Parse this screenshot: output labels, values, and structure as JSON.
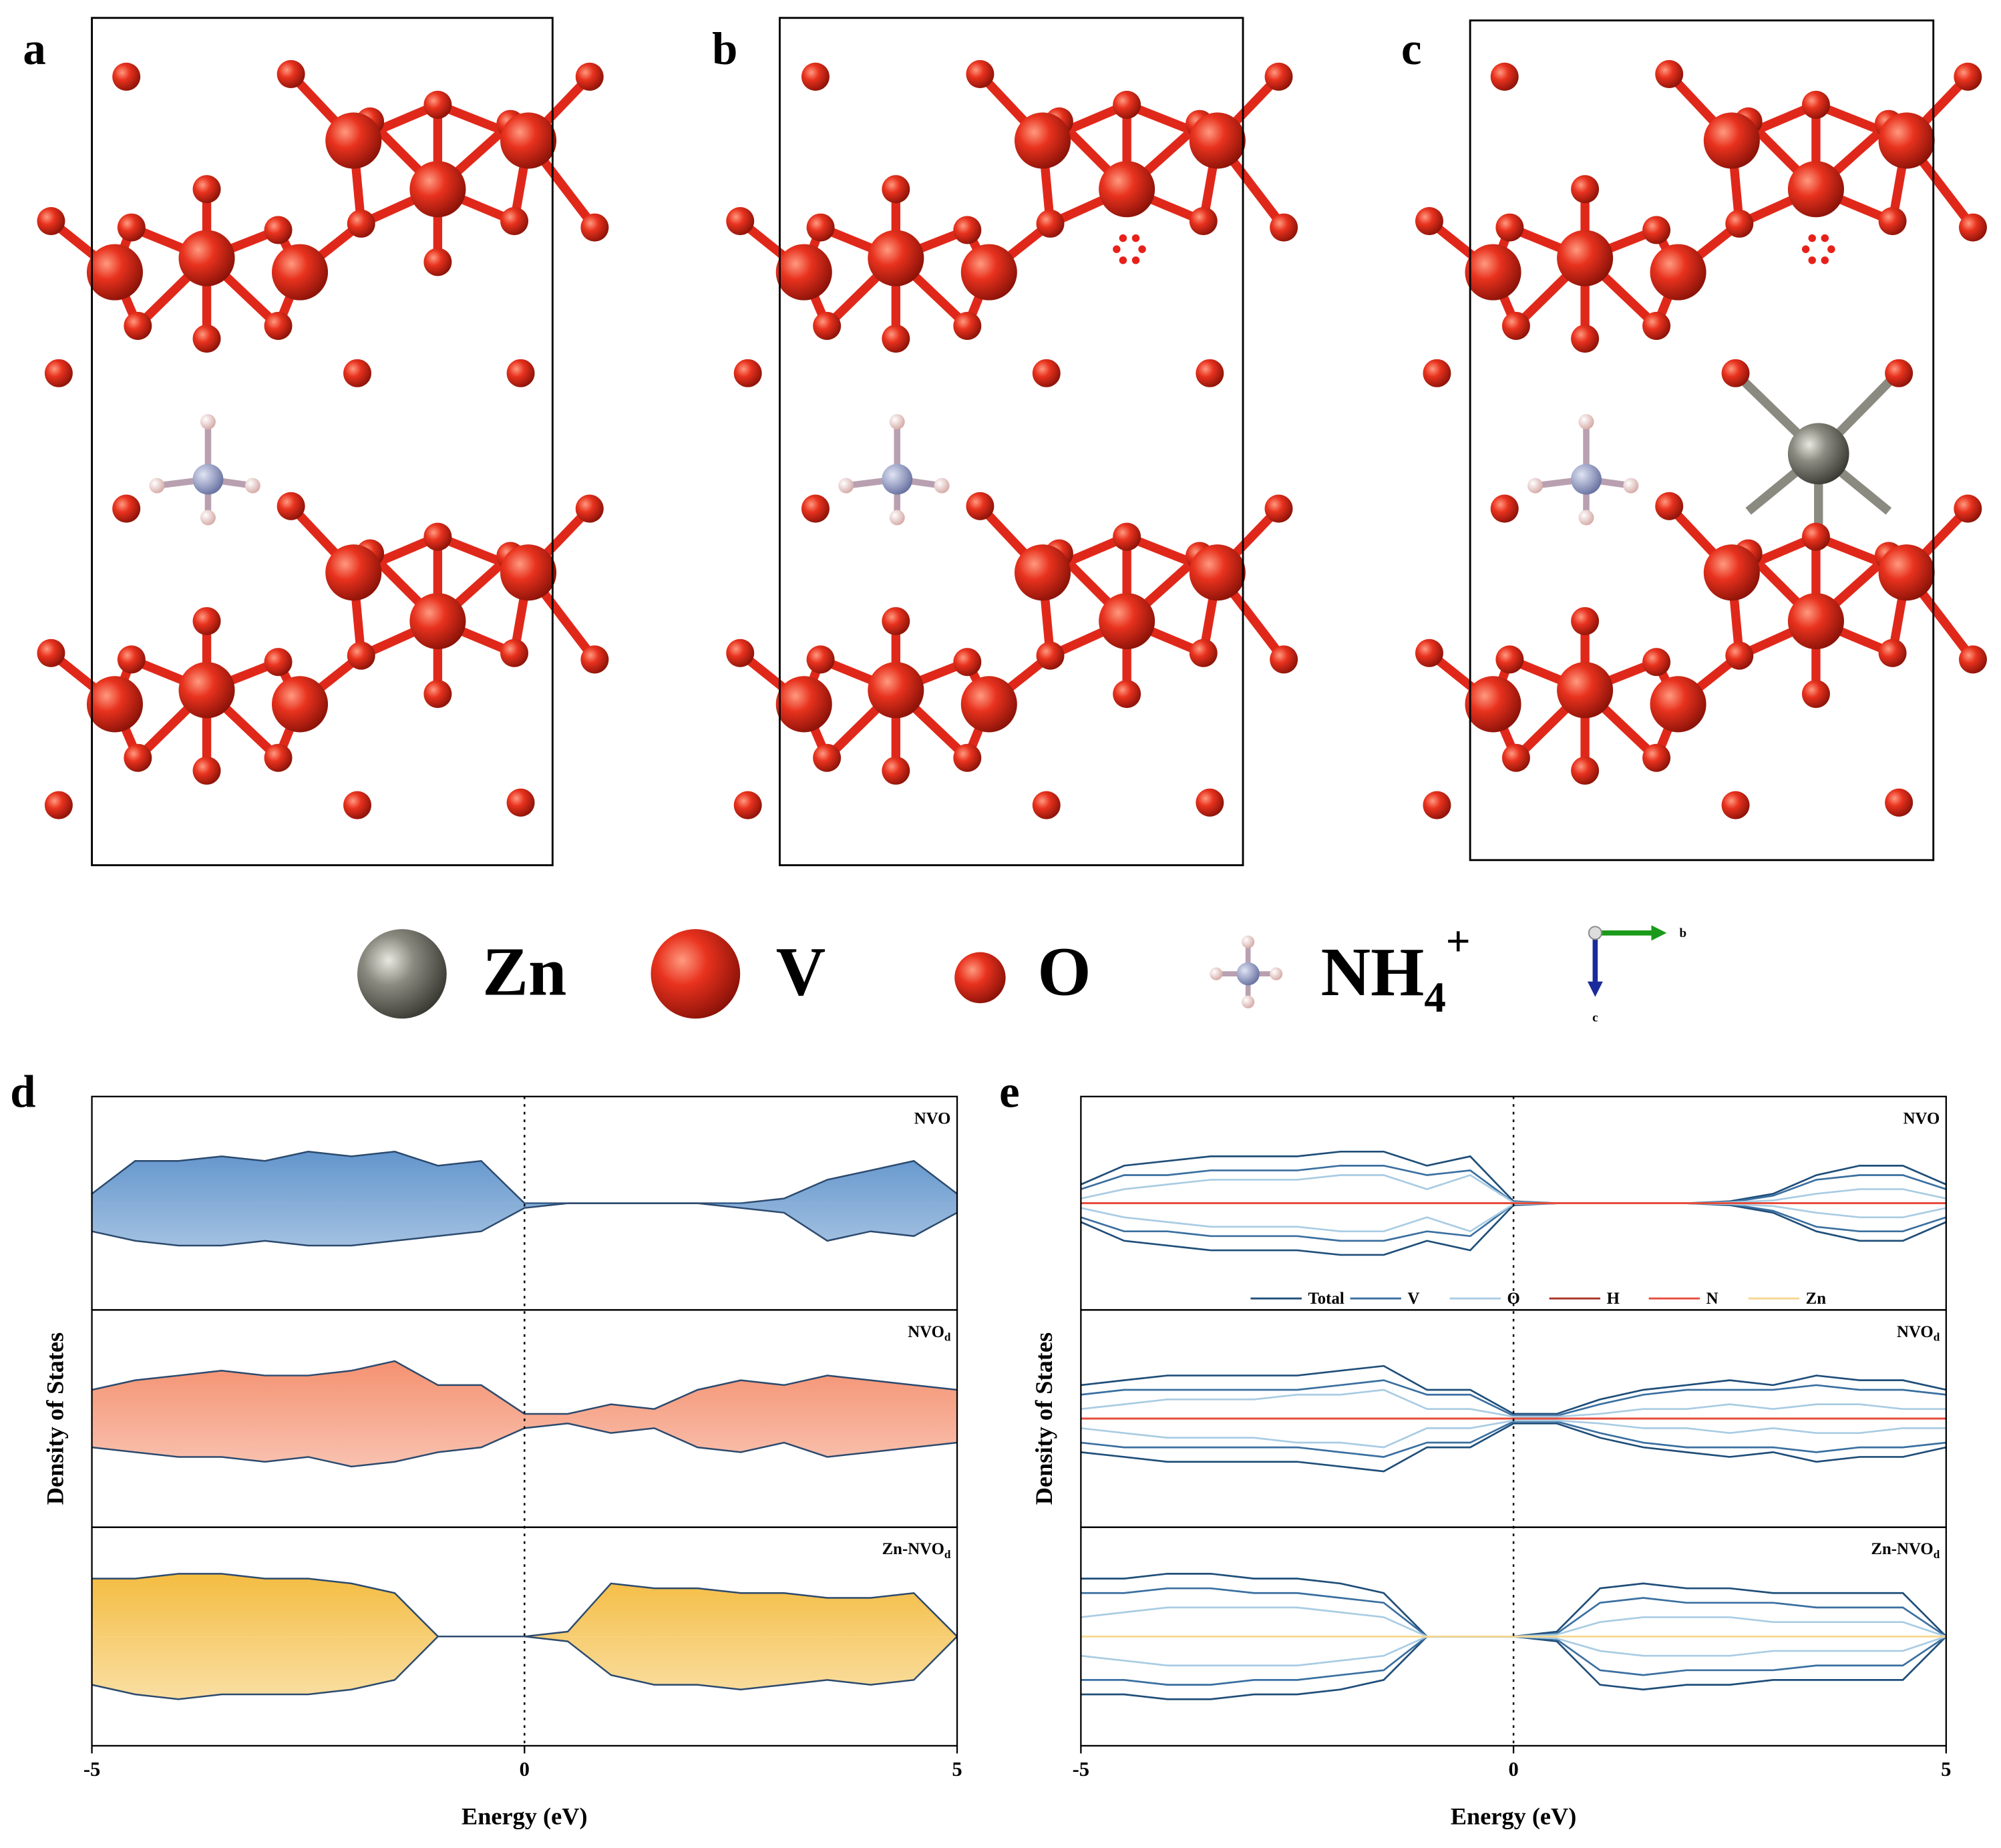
{
  "structures": {
    "panels": [
      {
        "label": "a"
      },
      {
        "label": "b"
      },
      {
        "label": "c"
      }
    ],
    "legend": [
      {
        "label": "Zn"
      },
      {
        "label": "V"
      },
      {
        "label": "O"
      },
      {
        "label": "NH",
        "sub": "4",
        "sup": "+"
      }
    ],
    "axes": {
      "x": "b",
      "y": "c"
    }
  },
  "chart_data": [
    {
      "type": "area",
      "panel_label": "d",
      "xlabel": "Energy (eV)",
      "ylabel": "Density of States",
      "x": [
        -5,
        -4.5,
        -4,
        -3.5,
        -3,
        -2.5,
        -2,
        -1.5,
        -1,
        -0.5,
        0,
        0.5,
        1,
        1.5,
        2,
        2.5,
        3,
        3.5,
        4,
        4.5,
        5
      ],
      "xlim": [
        -5,
        5
      ],
      "xticks": [
        -5,
        0,
        5
      ],
      "ylim": [
        -1,
        1
      ],
      "vline": 0,
      "panels": [
        {
          "title": "NVO",
          "color": "#3d7cc0",
          "up": [
            0.1,
            0.45,
            0.45,
            0.5,
            0.45,
            0.55,
            0.5,
            0.55,
            0.4,
            0.45,
            0,
            0,
            0,
            0,
            0,
            0,
            0.05,
            0.25,
            0.35,
            0.45,
            0.1
          ],
          "down": [
            -0.3,
            -0.4,
            -0.45,
            -0.45,
            -0.4,
            -0.45,
            -0.45,
            -0.4,
            -0.35,
            -0.3,
            -0.05,
            0,
            0,
            0,
            0,
            -0.05,
            -0.1,
            -0.4,
            -0.3,
            -0.35,
            -0.1
          ]
        },
        {
          "title": "NVO",
          "sub": "d",
          "color": "#f27a52",
          "up": [
            0.3,
            0.4,
            0.45,
            0.5,
            0.45,
            0.45,
            0.5,
            0.6,
            0.35,
            0.35,
            0.05,
            0.05,
            0.15,
            0.1,
            0.3,
            0.4,
            0.35,
            0.45,
            0.4,
            0.35,
            0.3
          ],
          "down": [
            -0.3,
            -0.35,
            -0.4,
            -0.4,
            -0.45,
            -0.4,
            -0.5,
            -0.45,
            -0.35,
            -0.3,
            -0.1,
            -0.05,
            -0.15,
            -0.1,
            -0.3,
            -0.35,
            -0.25,
            -0.4,
            -0.35,
            -0.3,
            -0.25
          ]
        },
        {
          "title": "Zn-NVO",
          "sub": "d",
          "color": "#f2b01e",
          "up": [
            0.6,
            0.6,
            0.65,
            0.65,
            0.6,
            0.6,
            0.55,
            0.45,
            0,
            0,
            0,
            0.05,
            0.55,
            0.5,
            0.5,
            0.45,
            0.45,
            0.4,
            0.4,
            0.45,
            0
          ],
          "down": [
            -0.5,
            -0.6,
            -0.65,
            -0.6,
            -0.6,
            -0.6,
            -0.55,
            -0.45,
            0,
            0,
            0,
            -0.05,
            -0.4,
            -0.5,
            -0.5,
            -0.55,
            -0.5,
            -0.45,
            -0.5,
            -0.45,
            0
          ]
        }
      ]
    },
    {
      "type": "line",
      "panel_label": "e",
      "xlabel": "Energy (eV)",
      "ylabel": "Density of States",
      "x": [
        -5,
        -4.5,
        -4,
        -3.5,
        -3,
        -2.5,
        -2,
        -1.5,
        -1,
        -0.5,
        0,
        0.5,
        1,
        1.5,
        2,
        2.5,
        3,
        3.5,
        4,
        4.5,
        5
      ],
      "xlim": [
        -5,
        5
      ],
      "xticks": [
        -5,
        0,
        5
      ],
      "ylim": [
        -1,
        1
      ],
      "vline": 0,
      "panel_titles": [
        {
          "title": "NVO"
        },
        {
          "title": "NVO",
          "sub": "d"
        },
        {
          "title": "Zn-NVO",
          "sub": "d"
        }
      ],
      "series": [
        {
          "name": "Total",
          "color": "#1f4e79",
          "values": [
            [
              0.2,
              0.4,
              0.45,
              0.5,
              0.5,
              0.5,
              0.55,
              0.55,
              0.4,
              0.5,
              0.02,
              0,
              0,
              0,
              0,
              0.02,
              0.1,
              0.3,
              0.4,
              0.4,
              0.2
            ],
            [
              0.35,
              0.4,
              0.45,
              0.45,
              0.45,
              0.45,
              0.5,
              0.55,
              0.3,
              0.3,
              0.05,
              0.05,
              0.2,
              0.3,
              0.35,
              0.4,
              0.35,
              0.45,
              0.4,
              0.4,
              0.3
            ],
            [
              0.6,
              0.6,
              0.65,
              0.65,
              0.6,
              0.6,
              0.55,
              0.45,
              0,
              0,
              0,
              0.05,
              0.5,
              0.55,
              0.5,
              0.5,
              0.45,
              0.45,
              0.45,
              0.45,
              0
            ]
          ]
        },
        {
          "name": "V",
          "color": "#3a6fa0",
          "values": [
            [
              0.15,
              0.3,
              0.3,
              0.35,
              0.35,
              0.35,
              0.4,
              0.4,
              0.3,
              0.35,
              0.01,
              0,
              0,
              0,
              0,
              0.01,
              0.08,
              0.25,
              0.3,
              0.3,
              0.15
            ],
            [
              0.25,
              0.3,
              0.3,
              0.3,
              0.3,
              0.3,
              0.35,
              0.4,
              0.25,
              0.25,
              0.03,
              0.03,
              0.15,
              0.25,
              0.3,
              0.3,
              0.3,
              0.35,
              0.3,
              0.3,
              0.25
            ],
            [
              0.45,
              0.45,
              0.5,
              0.5,
              0.45,
              0.45,
              0.4,
              0.35,
              0,
              0,
              0,
              0.03,
              0.35,
              0.4,
              0.35,
              0.35,
              0.35,
              0.3,
              0.3,
              0.3,
              0
            ]
          ]
        },
        {
          "name": "O",
          "color": "#a9cce3",
          "values": [
            [
              0.05,
              0.15,
              0.2,
              0.25,
              0.25,
              0.25,
              0.3,
              0.3,
              0.15,
              0.3,
              0.01,
              0,
              0,
              0,
              0,
              0.01,
              0.03,
              0.1,
              0.15,
              0.15,
              0.05
            ],
            [
              0.1,
              0.15,
              0.2,
              0.2,
              0.2,
              0.25,
              0.25,
              0.3,
              0.1,
              0.1,
              0.02,
              0.02,
              0.05,
              0.1,
              0.1,
              0.15,
              0.1,
              0.15,
              0.15,
              0.1,
              0.1
            ],
            [
              0.2,
              0.25,
              0.3,
              0.3,
              0.3,
              0.3,
              0.25,
              0.2,
              0,
              0,
              0,
              0.02,
              0.15,
              0.2,
              0.2,
              0.2,
              0.15,
              0.15,
              0.15,
              0.15,
              0
            ]
          ]
        },
        {
          "name": "H",
          "color": "#a93226",
          "values": [
            [
              0,
              0,
              0,
              0,
              0,
              0,
              0,
              0,
              0,
              0,
              0,
              0,
              0,
              0,
              0,
              0,
              0,
              0,
              0,
              0,
              0
            ],
            [
              0,
              0,
              0,
              0,
              0,
              0,
              0,
              0,
              0,
              0,
              0,
              0,
              0,
              0,
              0,
              0,
              0,
              0,
              0,
              0,
              0
            ],
            [
              null,
              null,
              null,
              null,
              null,
              null,
              null,
              null,
              null,
              null,
              null,
              null,
              null,
              null,
              null,
              null,
              null,
              null,
              null,
              null,
              null
            ]
          ]
        },
        {
          "name": "N",
          "color": "#e74c3c",
          "values": [
            [
              0,
              0,
              0,
              0,
              0,
              0,
              0,
              0,
              0,
              0,
              0,
              0,
              0,
              0,
              0,
              0,
              0,
              0,
              0,
              0,
              0
            ],
            [
              0,
              0,
              0,
              0,
              0,
              0,
              0,
              0,
              0,
              0,
              0,
              0,
              0,
              0,
              0,
              0,
              0,
              0,
              0,
              0,
              0
            ],
            [
              null,
              null,
              null,
              null,
              null,
              null,
              null,
              null,
              null,
              null,
              null,
              null,
              null,
              null,
              null,
              null,
              null,
              null,
              null,
              null,
              null
            ]
          ]
        },
        {
          "name": "Zn",
          "color": "#f5d78e",
          "values": [
            [
              null,
              null,
              null,
              null,
              null,
              null,
              null,
              null,
              null,
              null,
              null,
              null,
              null,
              null,
              null,
              null,
              null,
              null,
              null,
              null,
              null
            ],
            [
              null,
              null,
              null,
              null,
              null,
              null,
              null,
              null,
              null,
              null,
              null,
              null,
              null,
              null,
              null,
              null,
              null,
              null,
              null,
              null,
              null
            ],
            [
              0,
              0,
              0,
              0,
              0,
              0,
              0,
              0,
              0,
              0,
              0,
              0,
              0,
              0,
              0,
              0,
              0,
              0,
              0,
              0,
              0
            ]
          ]
        }
      ]
    }
  ]
}
